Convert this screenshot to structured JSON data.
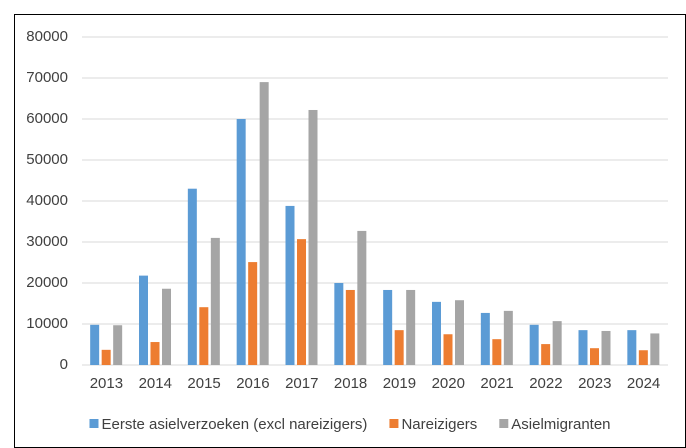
{
  "chart_data": {
    "type": "bar",
    "categories": [
      "2013",
      "2014",
      "2015",
      "2016",
      "2017",
      "2018",
      "2019",
      "2020",
      "2021",
      "2022",
      "2023",
      "2024"
    ],
    "series": [
      {
        "name": "Eerste asielverzoeken (excl nareizigers)",
        "color": "#5b9bd5",
        "values": [
          9800,
          21800,
          43000,
          60000,
          38800,
          20000,
          18300,
          15400,
          12700,
          9800,
          8500,
          8500
        ]
      },
      {
        "name": "Nareizigers",
        "color": "#ed7d31",
        "values": [
          3700,
          5600,
          14100,
          25100,
          30700,
          18300,
          8500,
          7500,
          6300,
          5100,
          4100,
          3600
        ]
      },
      {
        "name": "Asielmigranten",
        "color": "#a5a5a5",
        "values": [
          9700,
          18600,
          31000,
          69000,
          62200,
          32700,
          18300,
          15800,
          13200,
          10700,
          8300,
          7700
        ]
      }
    ],
    "ylim": [
      0,
      80000
    ],
    "yticks": [
      0,
      10000,
      20000,
      30000,
      40000,
      50000,
      60000,
      70000,
      80000
    ],
    "grid": true,
    "legend": "bottom"
  }
}
